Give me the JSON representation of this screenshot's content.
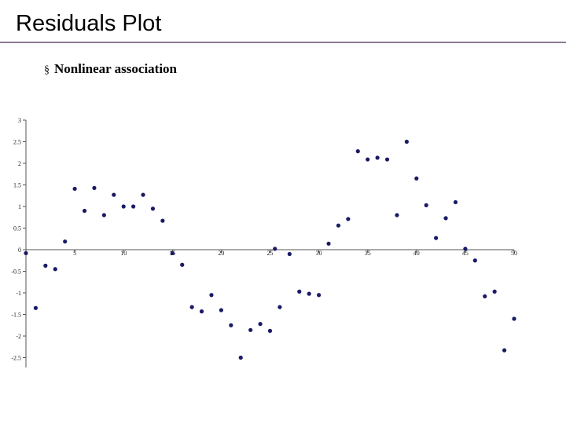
{
  "slide": {
    "title": "Residuals Plot",
    "bullet_mark": "§",
    "bullet": "Nonlinear association"
  },
  "chart_data": {
    "type": "scatter",
    "title": "",
    "xlabel": "",
    "ylabel": "",
    "xlim": [
      0,
      50
    ],
    "ylim": [
      -2.7,
      3
    ],
    "xticks": [
      5,
      10,
      15,
      20,
      25,
      30,
      35,
      40,
      45,
      50
    ],
    "yticks": [
      3,
      2.5,
      2,
      1.5,
      1,
      0.5,
      0,
      -0.5,
      -1,
      -1.5,
      -2,
      -2.5
    ],
    "grid": false,
    "marker_color": "#1a1a66",
    "points": [
      {
        "x": 0,
        "y": -0.08
      },
      {
        "x": 1,
        "y": -1.35
      },
      {
        "x": 2,
        "y": -0.37
      },
      {
        "x": 3,
        "y": -0.45
      },
      {
        "x": 4,
        "y": 0.19
      },
      {
        "x": 5,
        "y": 1.41
      },
      {
        "x": 6,
        "y": 0.9
      },
      {
        "x": 7,
        "y": 1.43
      },
      {
        "x": 8,
        "y": 0.8
      },
      {
        "x": 9,
        "y": 1.27
      },
      {
        "x": 10,
        "y": 1.0
      },
      {
        "x": 11,
        "y": 1.0
      },
      {
        "x": 12,
        "y": 1.27
      },
      {
        "x": 13,
        "y": 0.95
      },
      {
        "x": 14,
        "y": 0.67
      },
      {
        "x": 15,
        "y": -0.08
      },
      {
        "x": 16,
        "y": -0.35
      },
      {
        "x": 17,
        "y": -1.33
      },
      {
        "x": 18,
        "y": -1.43
      },
      {
        "x": 19,
        "y": -1.05
      },
      {
        "x": 20,
        "y": -1.4
      },
      {
        "x": 21,
        "y": -1.75
      },
      {
        "x": 22,
        "y": -2.5
      },
      {
        "x": 23,
        "y": -1.86
      },
      {
        "x": 24,
        "y": -1.72
      },
      {
        "x": 25,
        "y": -1.88
      },
      {
        "x": 25.5,
        "y": 0.02
      },
      {
        "x": 26,
        "y": -1.33
      },
      {
        "x": 27,
        "y": -0.1
      },
      {
        "x": 28,
        "y": -0.97
      },
      {
        "x": 29,
        "y": -1.02
      },
      {
        "x": 30,
        "y": -1.05
      },
      {
        "x": 31,
        "y": 0.14
      },
      {
        "x": 32,
        "y": 0.56
      },
      {
        "x": 33,
        "y": 0.71
      },
      {
        "x": 34,
        "y": 2.28
      },
      {
        "x": 35,
        "y": 2.09
      },
      {
        "x": 36,
        "y": 2.13
      },
      {
        "x": 37,
        "y": 2.09
      },
      {
        "x": 38,
        "y": 0.8
      },
      {
        "x": 39,
        "y": 2.5
      },
      {
        "x": 40,
        "y": 1.65
      },
      {
        "x": 41,
        "y": 1.03
      },
      {
        "x": 42,
        "y": 0.27
      },
      {
        "x": 43,
        "y": 0.73
      },
      {
        "x": 44,
        "y": 1.1
      },
      {
        "x": 45,
        "y": 0.02
      },
      {
        "x": 46,
        "y": -0.25
      },
      {
        "x": 47,
        "y": -1.08
      },
      {
        "x": 48,
        "y": -0.97
      },
      {
        "x": 49,
        "y": -2.33
      },
      {
        "x": 50,
        "y": -1.6
      }
    ]
  }
}
